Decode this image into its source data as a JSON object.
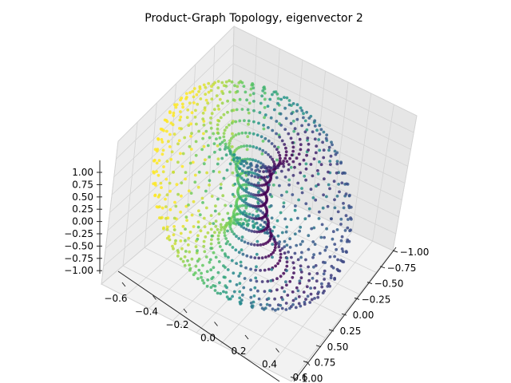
{
  "chart_data": {
    "type": "scatter",
    "projection": "3d",
    "title": "Product-Graph Topology, eigenvector 2",
    "colormap": "viridis",
    "grid": true,
    "surface": "torus of point rings (product graph embedding)",
    "axes": {
      "x": {
        "label": "",
        "ticks": [
          "−1.00",
          "−0.75",
          "−0.50",
          "−0.25",
          "0.00",
          "0.25",
          "0.50",
          "0.75",
          "1.00"
        ]
      },
      "y": {
        "label": "",
        "ticks": [
          "−0.6",
          "−0.4",
          "−0.2",
          "0.0",
          "0.2",
          "0.4",
          "0.6"
        ]
      },
      "z": {
        "label": "",
        "ticks": [
          "1.00",
          "0.75",
          "0.50",
          "0.25",
          "0.00",
          "−0.25",
          "−0.50",
          "−0.75",
          "−1.00"
        ]
      }
    },
    "color_scale": [
      "#440154",
      "#3b528b",
      "#21918c",
      "#5ec962",
      "#fde725"
    ]
  }
}
